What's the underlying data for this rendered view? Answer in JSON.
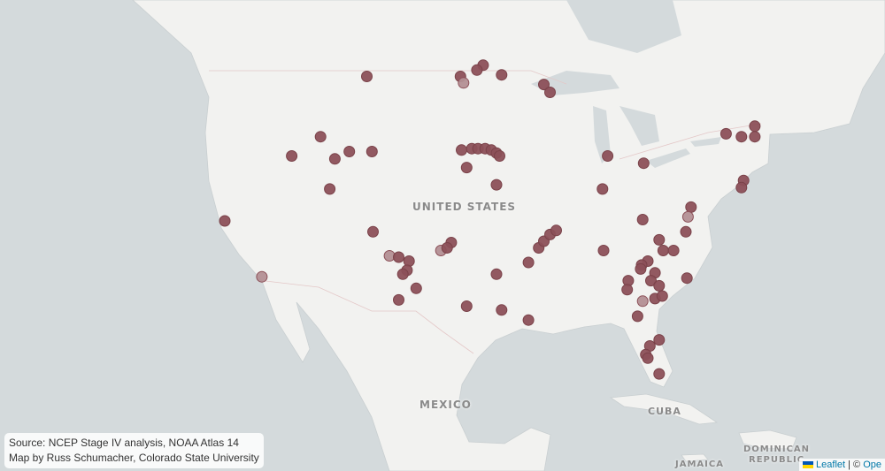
{
  "map": {
    "labels": {
      "us": "UNITED STATES",
      "mexico": "MEXICO",
      "cuba": "CUBA",
      "dr1": "DOMINICAN",
      "dr2": "REPUBLIC",
      "jamaica": "JAMAICA"
    },
    "marker_color": "#8c5058",
    "land_color": "#f2f2f0",
    "water_color": "#d4dadc",
    "markers": [
      [
        47.6,
        -108.6
      ],
      [
        47.6,
        -99.5
      ],
      [
        47.2,
        -99.2,
        "faded"
      ],
      [
        48.3,
        -97.3
      ],
      [
        48.0,
        -97.9
      ],
      [
        47.7,
        -95.5
      ],
      [
        47.1,
        -91.4
      ],
      [
        46.6,
        -90.8
      ],
      [
        43.7,
        -113.1
      ],
      [
        42.4,
        -115.9
      ],
      [
        42.2,
        -111.7
      ],
      [
        42.7,
        -110.3
      ],
      [
        42.7,
        -108.1
      ],
      [
        40.1,
        -112.2
      ],
      [
        37.8,
        -122.4
      ],
      [
        33.6,
        -118.8,
        "faded"
      ],
      [
        42.8,
        -99.4
      ],
      [
        42.9,
        -98.4
      ],
      [
        42.9,
        -97.8
      ],
      [
        42.9,
        -97.1
      ],
      [
        42.8,
        -96.5
      ],
      [
        42.6,
        -96.0
      ],
      [
        42.4,
        -95.7
      ],
      [
        41.6,
        -98.9
      ],
      [
        40.4,
        -96.0
      ],
      [
        37.0,
        -108.0
      ],
      [
        35.2,
        -106.4,
        "faded"
      ],
      [
        35.1,
        -105.5
      ],
      [
        34.8,
        -104.5
      ],
      [
        34.1,
        -104.7
      ],
      [
        33.8,
        -105.1
      ],
      [
        32.7,
        -103.8
      ],
      [
        31.8,
        -105.5
      ],
      [
        36.2,
        -100.4
      ],
      [
        35.6,
        -101.4,
        "faded"
      ],
      [
        35.8,
        -100.8
      ],
      [
        33.8,
        -96.0
      ],
      [
        31.3,
        -98.9
      ],
      [
        31.0,
        -95.5
      ],
      [
        30.2,
        -92.9
      ],
      [
        34.7,
        -92.9
      ],
      [
        35.8,
        -91.9
      ],
      [
        36.3,
        -91.4
      ],
      [
        36.8,
        -90.8
      ],
      [
        37.1,
        -90.2
      ],
      [
        35.6,
        -85.6
      ],
      [
        42.4,
        -85.2
      ],
      [
        40.1,
        -85.7
      ],
      [
        41.9,
        -81.7
      ],
      [
        37.9,
        -81.8
      ],
      [
        38.8,
        -77.1
      ],
      [
        38.1,
        -77.4,
        "faded"
      ],
      [
        37.0,
        -77.6
      ],
      [
        36.4,
        -80.2
      ],
      [
        35.6,
        -79.8
      ],
      [
        35.6,
        -78.8
      ],
      [
        34.8,
        -81.3
      ],
      [
        34.5,
        -81.9
      ],
      [
        34.2,
        -82.0
      ],
      [
        33.9,
        -80.6
      ],
      [
        33.3,
        -81.0
      ],
      [
        32.9,
        -80.2
      ],
      [
        31.9,
        -80.6
      ],
      [
        33.3,
        -83.2
      ],
      [
        32.6,
        -83.3
      ],
      [
        32.1,
        -79.9
      ],
      [
        33.5,
        -77.5
      ],
      [
        31.7,
        -81.8,
        "faded"
      ],
      [
        30.5,
        -82.3
      ],
      [
        28.6,
        -80.2
      ],
      [
        28.1,
        -81.1
      ],
      [
        27.4,
        -81.5
      ],
      [
        27.1,
        -81.3
      ],
      [
        25.8,
        -80.2
      ],
      [
        43.9,
        -73.7
      ],
      [
        43.7,
        -72.2
      ],
      [
        44.4,
        -70.9
      ],
      [
        43.7,
        -70.9
      ],
      [
        40.7,
        -72.0
      ],
      [
        40.2,
        -72.2
      ]
    ]
  },
  "caption": {
    "line1": "Source: NCEP Stage IV analysis, NOAA Atlas 14",
    "line2": "Map by Russ Schumacher, Colorado State University"
  },
  "attribution": {
    "leaflet": "Leaflet",
    "sep": " | © ",
    "rest": "Ope"
  }
}
